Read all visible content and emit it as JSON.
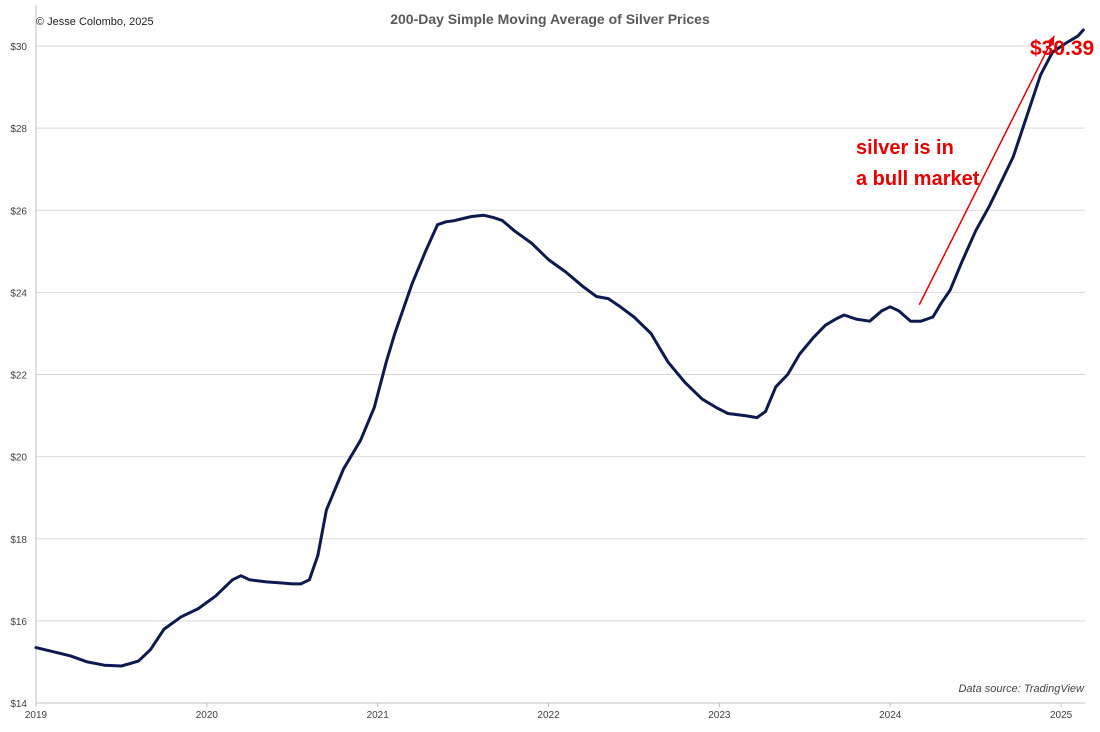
{
  "copyright": "© Jesse Colombo, 2025",
  "source_note": "Data source: TradingView",
  "colors": {
    "line": "#0d1a4f",
    "annotation": "#e60000",
    "grid": "#d9d9d9"
  },
  "chart_data": {
    "type": "line",
    "title": "200-Day Simple Moving Average of Silver Prices",
    "xlabel": "",
    "ylabel": "",
    "x_ticks": [
      "2019",
      "2020",
      "2021",
      "2022",
      "2023",
      "2024",
      "2025"
    ],
    "y_ticks": [
      "$14",
      "$16",
      "$18",
      "$20",
      "$22",
      "$24",
      "$26",
      "$28",
      "$30"
    ],
    "xlim": [
      2019.0,
      2025.14
    ],
    "ylim": [
      14,
      31
    ],
    "grid": "horizontal",
    "series": [
      {
        "x": [
          2019.0,
          2019.1,
          2019.2,
          2019.3,
          2019.4,
          2019.5,
          2019.6,
          2019.67,
          2019.75,
          2019.85,
          2019.95,
          2020.05,
          2020.15,
          2020.2,
          2020.25,
          2020.35,
          2020.45,
          2020.5,
          2020.55,
          2020.6,
          2020.65,
          2020.7,
          2020.8,
          2020.9,
          2020.98,
          2021.05,
          2021.1,
          2021.2,
          2021.28,
          2021.35,
          2021.4,
          2021.45,
          2021.5,
          2021.55,
          2021.62,
          2021.68,
          2021.73,
          2021.8,
          2021.9,
          2022.0,
          2022.1,
          2022.2,
          2022.28,
          2022.35,
          2022.42,
          2022.5,
          2022.6,
          2022.7,
          2022.8,
          2022.9,
          2022.98,
          2023.05,
          2023.15,
          2023.22,
          2023.27,
          2023.33,
          2023.4,
          2023.47,
          2023.55,
          2023.62,
          2023.68,
          2023.73,
          2023.8,
          2023.88,
          2023.95,
          2024.0,
          2024.05,
          2024.12,
          2024.18,
          2024.25,
          2024.3,
          2024.35,
          2024.42,
          2024.5,
          2024.58,
          2024.65,
          2024.72,
          2024.8,
          2024.88,
          2024.95,
          2025.02,
          2025.1,
          2025.13
        ],
        "values": [
          15.35,
          15.25,
          15.15,
          15.0,
          14.92,
          14.9,
          15.02,
          15.3,
          15.8,
          16.1,
          16.3,
          16.6,
          17.0,
          17.1,
          17.0,
          16.95,
          16.92,
          16.9,
          16.9,
          17.0,
          17.6,
          18.7,
          19.7,
          20.4,
          21.2,
          22.3,
          23.0,
          24.2,
          25.0,
          25.65,
          25.72,
          25.75,
          25.8,
          25.85,
          25.88,
          25.82,
          25.75,
          25.5,
          25.2,
          24.8,
          24.5,
          24.15,
          23.9,
          23.85,
          23.65,
          23.4,
          23.0,
          22.3,
          21.8,
          21.4,
          21.2,
          21.05,
          21.0,
          20.95,
          21.1,
          21.7,
          22.0,
          22.5,
          22.9,
          23.2,
          23.35,
          23.45,
          23.35,
          23.3,
          23.55,
          23.65,
          23.55,
          23.3,
          23.3,
          23.4,
          23.75,
          24.05,
          24.75,
          25.5,
          26.1,
          26.7,
          27.3,
          28.3,
          29.3,
          29.85,
          30.05,
          30.25,
          30.39
        ]
      }
    ],
    "annotations": {
      "last_value_label": "$30.39",
      "line1": "silver is in",
      "line2": "a bull market",
      "arrow_from": [
        2024.17,
        23.7
      ],
      "arrow_to": [
        2024.96,
        30.25
      ]
    }
  }
}
